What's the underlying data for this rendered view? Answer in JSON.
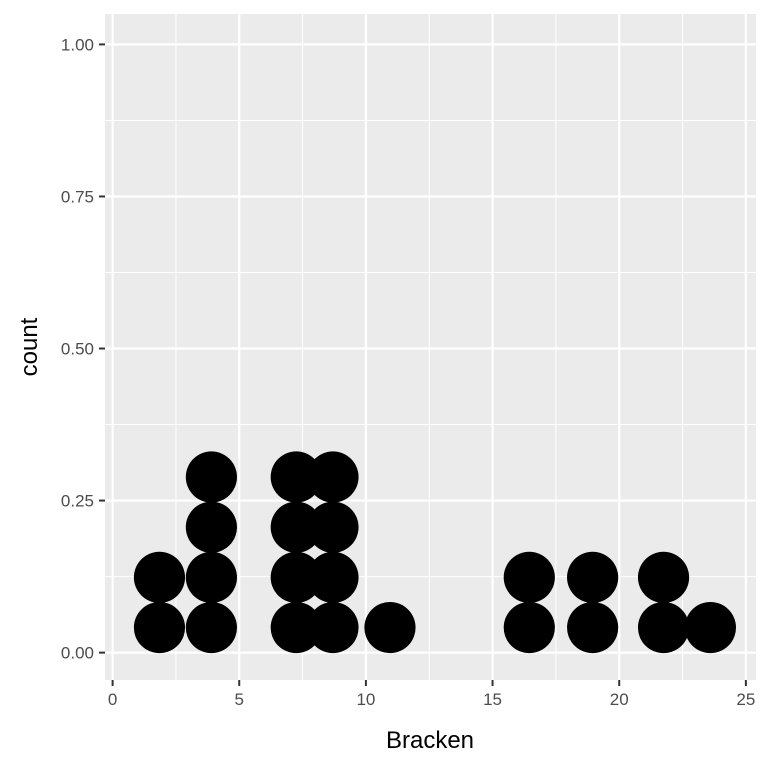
{
  "chart_data": {
    "type": "dotplot",
    "xlabel": "Bracken",
    "ylabel": "count",
    "xlim": [
      -0.3,
      25.4
    ],
    "ylim": [
      -0.045,
      1.05
    ],
    "x_ticks": [
      0,
      5,
      10,
      15,
      20,
      25
    ],
    "x_tick_labels": [
      "0",
      "5",
      "10",
      "15",
      "20",
      "25"
    ],
    "y_ticks": [
      0.0,
      0.25,
      0.5,
      0.75,
      1.0
    ],
    "y_tick_labels": [
      "0.00",
      "0.25",
      "0.50",
      "0.75",
      "1.00"
    ],
    "dot_step": 0.0825,
    "stacks": [
      {
        "x": 1.85,
        "count": 2
      },
      {
        "x": 3.9,
        "count": 4
      },
      {
        "x": 7.25,
        "count": 4
      },
      {
        "x": 8.7,
        "count": 4
      },
      {
        "x": 10.95,
        "count": 1
      },
      {
        "x": 16.45,
        "count": 2
      },
      {
        "x": 18.95,
        "count": 2
      },
      {
        "x": 21.75,
        "count": 2
      },
      {
        "x": 23.6,
        "count": 1
      }
    ],
    "grid": true,
    "colors": {
      "panel": "#ebebeb",
      "grid_major": "#ffffff",
      "dot": "#000000",
      "tick": "#333333"
    }
  }
}
